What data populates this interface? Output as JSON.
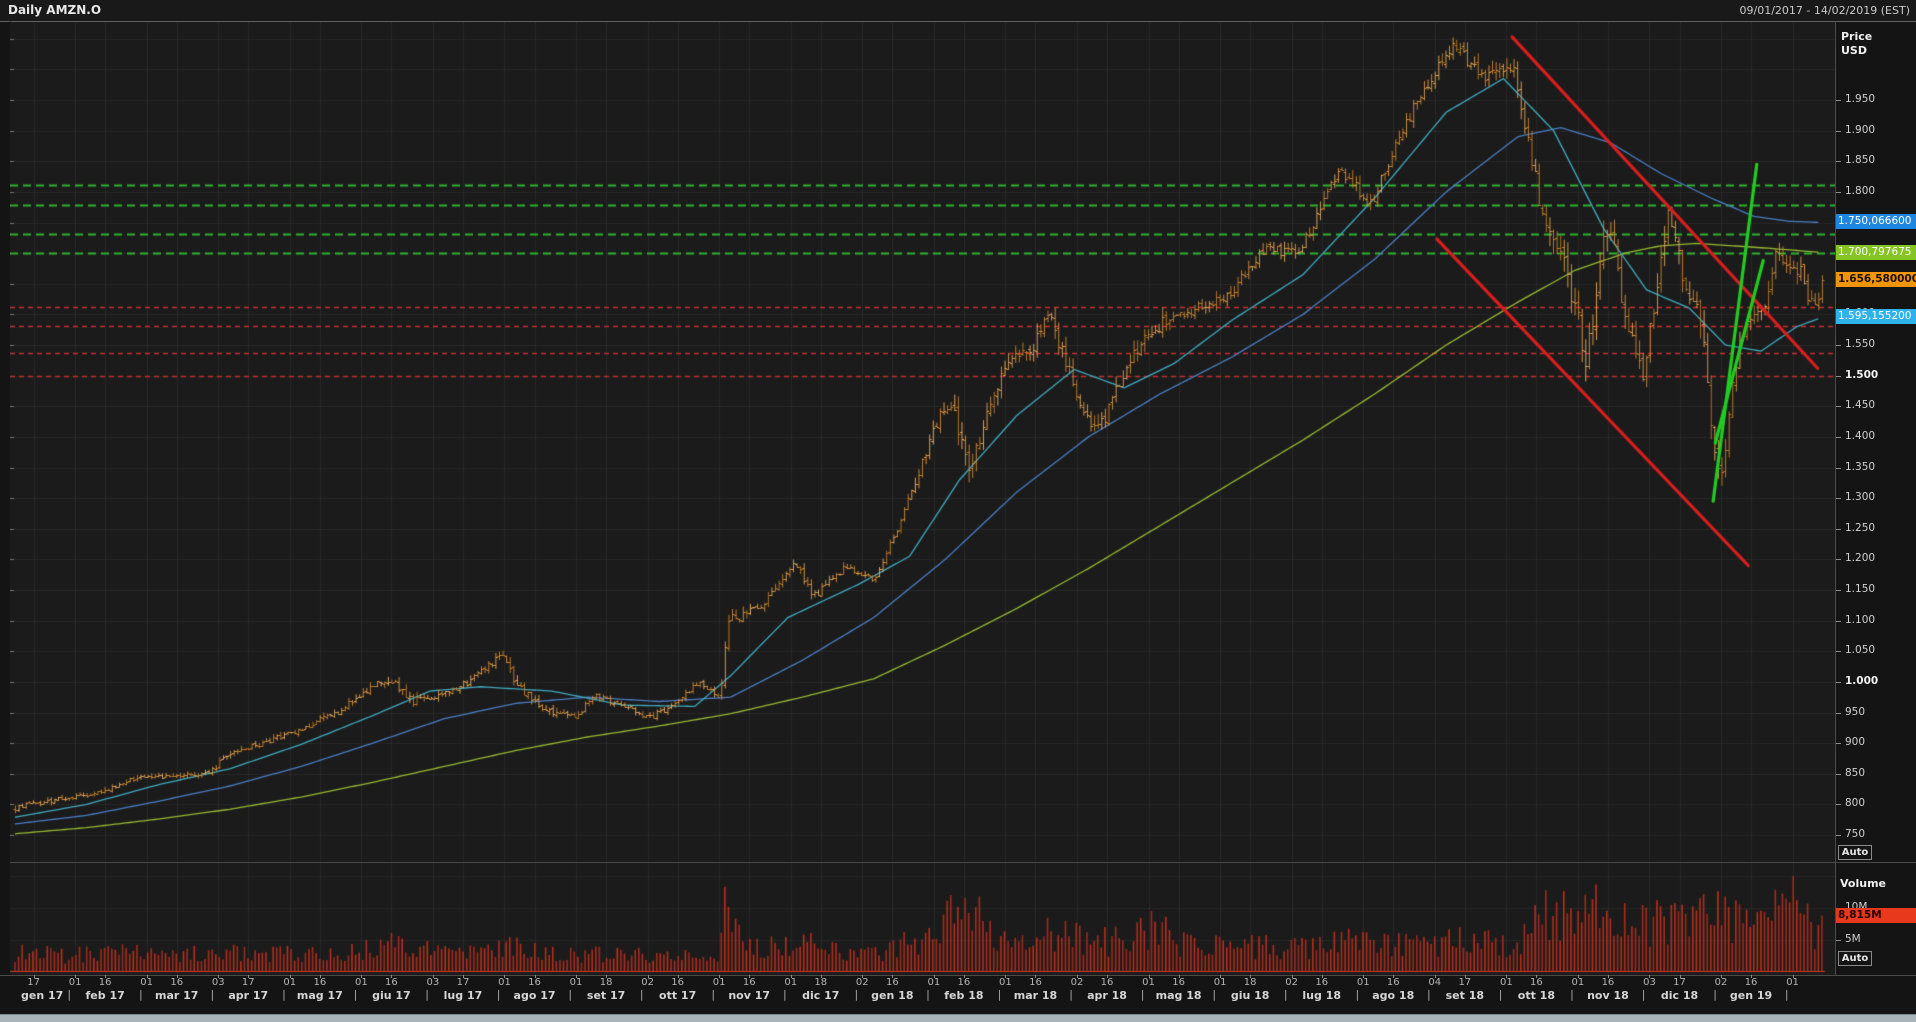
{
  "header": {
    "title": "Daily AMZN.O",
    "date_range": "09/01/2017 - 14/02/2019 (EST)"
  },
  "colors": {
    "background": "#1b1b1b",
    "grid": "rgba(255,255,255,0.055)",
    "candle": "#e39a36",
    "volume_bar": "#bf2f1c",
    "volume_baseline": "#d23a1f",
    "ma_fast": "#3fa9bf",
    "ma_mid": "#4a7dc4",
    "ma_slow": "#96b832",
    "level_green": "#2fb32f",
    "level_red": "#c53030",
    "trend_red": "#d81e1e",
    "trend_green": "#21cc21",
    "badge_blue_dark": "#1e86e0",
    "badge_green": "#84c424",
    "badge_orange": "#f0940a",
    "badge_blue_light": "#2fb1ea",
    "badge_red": "#e8391d"
  },
  "price_axis": {
    "title_line1": "Price",
    "title_line2": "USD",
    "auto_label": "Auto",
    "ticks": [
      {
        "label": "1.950",
        "price": 1950,
        "bold": false
      },
      {
        "label": "1.900",
        "price": 1900,
        "bold": false
      },
      {
        "label": "1.850",
        "price": 1850,
        "bold": false
      },
      {
        "label": "1.800",
        "price": 1800,
        "bold": false
      },
      {
        "label": "1.750",
        "price": 1750,
        "bold": false
      },
      {
        "label": "1.700",
        "price": 1700,
        "bold": false
      },
      {
        "label": "1.650",
        "price": 1650,
        "bold": false
      },
      {
        "label": "1.600",
        "price": 1600,
        "bold": false
      },
      {
        "label": "1.550",
        "price": 1550,
        "bold": false
      },
      {
        "label": "1.500",
        "price": 1500,
        "bold": true
      },
      {
        "label": "1.450",
        "price": 1450,
        "bold": false
      },
      {
        "label": "1.400",
        "price": 1400,
        "bold": false
      },
      {
        "label": "1.350",
        "price": 1350,
        "bold": false
      },
      {
        "label": "1.300",
        "price": 1300,
        "bold": false
      },
      {
        "label": "1.250",
        "price": 1250,
        "bold": false
      },
      {
        "label": "1.200",
        "price": 1200,
        "bold": false
      },
      {
        "label": "1.150",
        "price": 1150,
        "bold": false
      },
      {
        "label": "1.100",
        "price": 1100,
        "bold": false
      },
      {
        "label": "1.050",
        "price": 1050,
        "bold": false
      },
      {
        "label": "1.000",
        "price": 1000,
        "bold": true
      },
      {
        "label": "950",
        "price": 950,
        "bold": false
      },
      {
        "label": "900",
        "price": 900,
        "bold": false
      },
      {
        "label": "850",
        "price": 850,
        "bold": false
      },
      {
        "label": "800",
        "price": 800,
        "bold": false
      },
      {
        "label": "750",
        "price": 750,
        "bold": false
      }
    ]
  },
  "price_badges": [
    {
      "text": "1.750,066600",
      "price": 1750.0666,
      "bg": "#1e86e0",
      "fg": "#ffffff",
      "bold": false
    },
    {
      "text": "1.700,797675",
      "price": 1700.797675,
      "bg": "#84c424",
      "fg": "#ffffff",
      "bold": false
    },
    {
      "text": "1.656,580000",
      "price": 1656.58,
      "bg": "#f0940a",
      "fg": "#1a1000",
      "bold": true
    },
    {
      "text": "1.595,155200",
      "price": 1595.1552,
      "bg": "#2fb1ea",
      "fg": "#ffffff",
      "bold": false
    }
  ],
  "volume_axis": {
    "title": "Volume",
    "auto_label": "Auto",
    "ticks": [
      {
        "label": "10M",
        "value": 10
      },
      {
        "label": "5M",
        "value": 5
      }
    ],
    "badge": {
      "text": "8,815M",
      "value": 8.815,
      "bg": "#e8391d",
      "fg": "#200000",
      "bold": true
    }
  },
  "x_axis": {
    "months": [
      {
        "label": "gen 17",
        "ticks": [
          "17"
        ]
      },
      {
        "label": "feb 17",
        "ticks": [
          "01",
          "16"
        ]
      },
      {
        "label": "mar 17",
        "ticks": [
          "01",
          "16"
        ]
      },
      {
        "label": "apr 17",
        "ticks": [
          "03",
          "17"
        ]
      },
      {
        "label": "mag 17",
        "ticks": [
          "01",
          "16"
        ]
      },
      {
        "label": "giu 17",
        "ticks": [
          "01",
          "16"
        ]
      },
      {
        "label": "lug 17",
        "ticks": [
          "03",
          "17"
        ]
      },
      {
        "label": "ago 17",
        "ticks": [
          "01",
          "16"
        ]
      },
      {
        "label": "set 17",
        "ticks": [
          "01",
          "18"
        ]
      },
      {
        "label": "ott 17",
        "ticks": [
          "02",
          "16"
        ]
      },
      {
        "label": "nov 17",
        "ticks": [
          "01",
          "16"
        ]
      },
      {
        "label": "dic 17",
        "ticks": [
          "01",
          "18"
        ]
      },
      {
        "label": "gen 18",
        "ticks": [
          "02",
          "16"
        ]
      },
      {
        "label": "feb 18",
        "ticks": [
          "01",
          "16"
        ]
      },
      {
        "label": "mar 18",
        "ticks": [
          "01",
          "16"
        ]
      },
      {
        "label": "apr 18",
        "ticks": [
          "02",
          "16"
        ]
      },
      {
        "label": "mag 18",
        "ticks": [
          "01",
          "16"
        ]
      },
      {
        "label": "giu 18",
        "ticks": [
          "01",
          "18"
        ]
      },
      {
        "label": "lug 18",
        "ticks": [
          "02",
          "16"
        ]
      },
      {
        "label": "ago 18",
        "ticks": [
          "01",
          "16"
        ]
      },
      {
        "label": "set 18",
        "ticks": [
          "04",
          "17"
        ]
      },
      {
        "label": "ott 18",
        "ticks": [
          "01",
          "16"
        ]
      },
      {
        "label": "nov 18",
        "ticks": [
          "01",
          "16"
        ]
      },
      {
        "label": "dic 18",
        "ticks": [
          "03",
          "17"
        ]
      },
      {
        "label": "gen 19",
        "ticks": [
          "02",
          "16"
        ]
      }
    ],
    "separator": "|",
    "trailing_tick": "01"
  },
  "chart_data": {
    "type": "candlestick",
    "symbol": "AMZN.O",
    "interval": "Daily",
    "title": "Daily AMZN.O",
    "period": "09/01/2017 - 14/02/2019 (EST)",
    "ylabel": "Price USD",
    "ylim": [
      750,
      2080
    ],
    "volume_ylim": [
      0,
      17
    ],
    "last_close": 1656.58,
    "last_volume_m": 8.815,
    "x_unit": "months_since_2017-01-09",
    "x_span": [
      0,
      25.25
    ],
    "price_anchors_format": [
      "month_index",
      "close",
      "bar_range",
      "volume_millions"
    ],
    "price_anchors": [
      [
        0.0,
        795,
        12,
        3.2
      ],
      [
        0.7,
        810,
        10,
        2.8
      ],
      [
        1.2,
        820,
        10,
        3.0
      ],
      [
        1.7,
        845,
        9,
        3.4
      ],
      [
        2.2,
        847,
        9,
        2.8
      ],
      [
        2.7,
        852,
        11,
        3.1
      ],
      [
        3.0,
        886,
        12,
        3.6
      ],
      [
        3.5,
        902,
        12,
        3.2
      ],
      [
        4.0,
        925,
        13,
        3.0
      ],
      [
        4.5,
        952,
        13,
        3.3
      ],
      [
        5.0,
        996,
        14,
        4.2
      ],
      [
        5.25,
        1006,
        18,
        5.5
      ],
      [
        5.55,
        968,
        20,
        4.8
      ],
      [
        5.95,
        978,
        14,
        3.2
      ],
      [
        6.35,
        1002,
        13,
        3.0
      ],
      [
        6.8,
        1046,
        16,
        5.0
      ],
      [
        7.05,
        988,
        18,
        4.4
      ],
      [
        7.45,
        952,
        15,
        3.4
      ],
      [
        7.85,
        946,
        13,
        3.0
      ],
      [
        8.1,
        978,
        12,
        2.9
      ],
      [
        8.4,
        964,
        12,
        2.7
      ],
      [
        8.85,
        942,
        12,
        2.8
      ],
      [
        9.2,
        962,
        11,
        2.6
      ],
      [
        9.55,
        1000,
        12,
        3.0
      ],
      [
        9.85,
        972,
        13,
        3.4
      ],
      [
        9.95,
        1100,
        28,
        13.5
      ],
      [
        10.15,
        1108,
        18,
        7.0
      ],
      [
        10.45,
        1128,
        15,
        4.0
      ],
      [
        10.9,
        1195,
        18,
        4.6
      ],
      [
        11.15,
        1138,
        18,
        4.4
      ],
      [
        11.6,
        1190,
        14,
        3.4
      ],
      [
        12.0,
        1169,
        12,
        2.9
      ],
      [
        12.35,
        1252,
        18,
        4.4
      ],
      [
        12.65,
        1352,
        22,
        5.2
      ],
      [
        12.95,
        1450,
        30,
        7.5
      ],
      [
        13.15,
        1428,
        40,
        9.5
      ],
      [
        13.35,
        1340,
        45,
        10.5
      ],
      [
        13.6,
        1460,
        35,
        6.5
      ],
      [
        13.9,
        1522,
        30,
        5.5
      ],
      [
        14.2,
        1545,
        30,
        5.0
      ],
      [
        14.45,
        1600,
        32,
        6.5
      ],
      [
        14.75,
        1500,
        35,
        5.5
      ],
      [
        14.95,
        1432,
        35,
        5.8
      ],
      [
        15.15,
        1412,
        32,
        5.2
      ],
      [
        15.6,
        1532,
        30,
        5.5
      ],
      [
        15.95,
        1582,
        35,
        7.2
      ],
      [
        16.3,
        1602,
        25,
        4.6
      ],
      [
        16.95,
        1632,
        22,
        4.0
      ],
      [
        17.45,
        1706,
        24,
        4.4
      ],
      [
        17.95,
        1702,
        22,
        3.8
      ],
      [
        18.5,
        1842,
        28,
        6.0
      ],
      [
        18.95,
        1780,
        30,
        5.2
      ],
      [
        19.3,
        1886,
        28,
        4.6
      ],
      [
        19.9,
        2012,
        26,
        4.8
      ],
      [
        20.1,
        2042,
        30,
        5.6
      ],
      [
        20.45,
        1990,
        32,
        5.2
      ],
      [
        20.95,
        2002,
        30,
        4.6
      ],
      [
        21.35,
        1755,
        50,
        9.0
      ],
      [
        21.7,
        1660,
        55,
        11.0
      ],
      [
        21.95,
        1532,
        60,
        12.0
      ],
      [
        22.25,
        1755,
        55,
        9.0
      ],
      [
        22.5,
        1600,
        50,
        8.0
      ],
      [
        22.75,
        1502,
        45,
        7.5
      ],
      [
        23.1,
        1772,
        50,
        9.0
      ],
      [
        23.35,
        1642,
        45,
        8.0
      ],
      [
        23.55,
        1592,
        45,
        8.5
      ],
      [
        23.75,
        1382,
        55,
        12.5
      ],
      [
        23.85,
        1343,
        50,
        9.5
      ],
      [
        24.0,
        1502,
        45,
        9.0
      ],
      [
        24.15,
        1578,
        40,
        8.2
      ],
      [
        24.45,
        1618,
        35,
        7.0
      ],
      [
        24.6,
        1702,
        38,
        9.2
      ],
      [
        24.95,
        1672,
        35,
        11.5
      ],
      [
        25.05,
        1628,
        40,
        8.5
      ],
      [
        25.15,
        1612,
        32,
        6.5
      ],
      [
        25.25,
        1656.58,
        25,
        8.815
      ]
    ],
    "moving_averages": [
      {
        "name": "ma-slow-green",
        "end_value": 1700.797675,
        "points": [
          [
            0,
            752
          ],
          [
            1,
            762
          ],
          [
            2,
            776
          ],
          [
            3,
            792
          ],
          [
            4,
            812
          ],
          [
            5,
            836
          ],
          [
            6,
            862
          ],
          [
            7,
            888
          ],
          [
            8,
            910
          ],
          [
            9,
            928
          ],
          [
            10,
            948
          ],
          [
            11,
            975
          ],
          [
            12,
            1005
          ],
          [
            13,
            1060
          ],
          [
            14,
            1120
          ],
          [
            15,
            1185
          ],
          [
            16,
            1255
          ],
          [
            17,
            1325
          ],
          [
            18,
            1395
          ],
          [
            19,
            1470
          ],
          [
            20,
            1550
          ],
          [
            21,
            1620
          ],
          [
            21.8,
            1672
          ],
          [
            22.5,
            1700
          ],
          [
            23,
            1712
          ],
          [
            23.5,
            1716
          ],
          [
            24,
            1712
          ],
          [
            24.5,
            1708
          ],
          [
            25.25,
            1701
          ]
        ]
      },
      {
        "name": "ma-mid-blue",
        "end_value": 1750.0666,
        "points": [
          [
            0,
            768
          ],
          [
            1,
            782
          ],
          [
            2,
            805
          ],
          [
            3,
            830
          ],
          [
            4,
            862
          ],
          [
            5,
            900
          ],
          [
            6,
            940
          ],
          [
            7,
            965
          ],
          [
            8,
            975
          ],
          [
            9,
            968
          ],
          [
            10,
            975
          ],
          [
            11,
            1035
          ],
          [
            12,
            1105
          ],
          [
            13,
            1200
          ],
          [
            14,
            1310
          ],
          [
            15,
            1400
          ],
          [
            16,
            1470
          ],
          [
            17,
            1530
          ],
          [
            18,
            1600
          ],
          [
            19,
            1690
          ],
          [
            20,
            1800
          ],
          [
            21,
            1890
          ],
          [
            21.6,
            1905
          ],
          [
            22.3,
            1880
          ],
          [
            23,
            1830
          ],
          [
            23.7,
            1790
          ],
          [
            24.3,
            1760
          ],
          [
            24.8,
            1752
          ],
          [
            25.25,
            1750
          ]
        ]
      },
      {
        "name": "ma-fast-teal",
        "end_value": 1595.1552,
        "points": [
          [
            0,
            779
          ],
          [
            1,
            800
          ],
          [
            2,
            832
          ],
          [
            3,
            858
          ],
          [
            4,
            898
          ],
          [
            5,
            945
          ],
          [
            5.8,
            985
          ],
          [
            6.5,
            992
          ],
          [
            7.5,
            985
          ],
          [
            8.5,
            962
          ],
          [
            9.5,
            960
          ],
          [
            10,
            1010
          ],
          [
            10.8,
            1105
          ],
          [
            11.8,
            1160
          ],
          [
            12.5,
            1205
          ],
          [
            13.2,
            1330
          ],
          [
            14,
            1435
          ],
          [
            14.8,
            1510
          ],
          [
            15.5,
            1480
          ],
          [
            16.2,
            1520
          ],
          [
            17,
            1590
          ],
          [
            18,
            1665
          ],
          [
            19,
            1790
          ],
          [
            20,
            1930
          ],
          [
            20.8,
            1985
          ],
          [
            21.5,
            1900
          ],
          [
            22.2,
            1740
          ],
          [
            22.8,
            1640
          ],
          [
            23.4,
            1610
          ],
          [
            23.9,
            1550
          ],
          [
            24.4,
            1540
          ],
          [
            24.9,
            1580
          ],
          [
            25.25,
            1595
          ]
        ]
      }
    ],
    "horizontal_levels": {
      "green_dashed": [
        1812,
        1779,
        1731,
        1700.8
      ],
      "red_dashed": [
        1612,
        1581,
        1537,
        1500
      ]
    },
    "trendlines": [
      {
        "color": "red",
        "from": [
          20.92,
          2053
        ],
        "to": [
          25.19,
          1512
        ]
      },
      {
        "color": "red",
        "from": [
          19.87,
          1723
        ],
        "to": [
          24.22,
          1190
        ]
      },
      {
        "color": "green",
        "from": [
          23.73,
          1295
        ],
        "to": [
          24.34,
          1845
        ]
      },
      {
        "color": "green",
        "from": [
          23.76,
          1390
        ],
        "to": [
          24.43,
          1688
        ]
      }
    ]
  }
}
